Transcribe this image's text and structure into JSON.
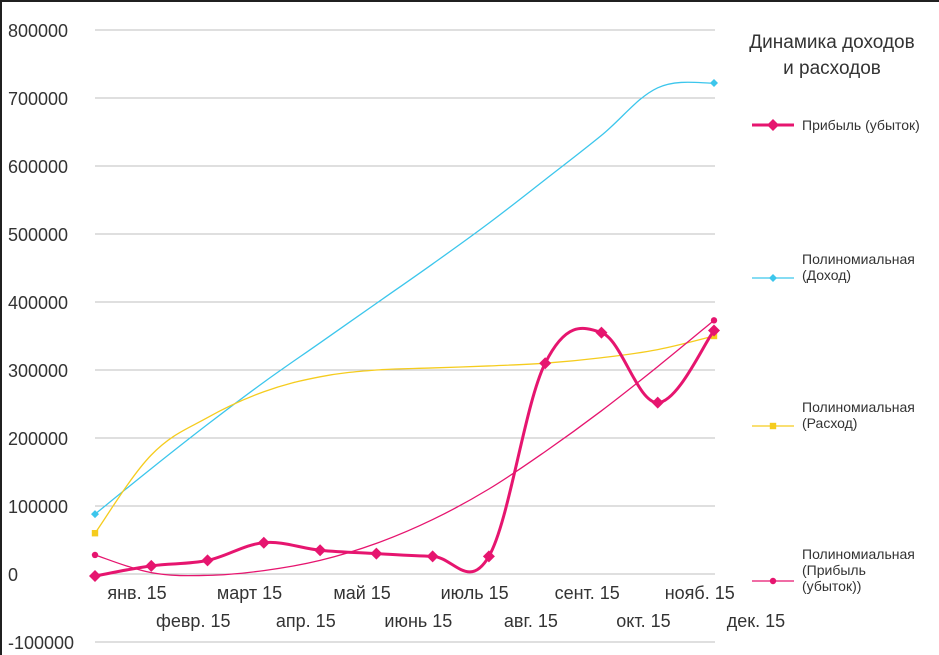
{
  "chart_data": {
    "type": "line",
    "title": [
      "Динамика доходов",
      "и расходов"
    ],
    "categories": [
      "янв. 15",
      "февр. 15",
      "март 15",
      "апр. 15",
      "май 15",
      "июнь 15",
      "июль 15",
      "авг. 15",
      "сент. 15",
      "окт. 15",
      "нояб. 15",
      "дек. 15"
    ],
    "ylim": [
      -100000,
      800000
    ],
    "yticks": [
      "800000",
      "700000",
      "600000",
      "500000",
      "400000",
      "300000",
      "200000",
      "100000",
      "0",
      "-100000"
    ],
    "ytick_values": [
      800000,
      700000,
      600000,
      500000,
      400000,
      300000,
      200000,
      100000,
      0,
      -100000
    ],
    "grid": true,
    "legend_position": "right",
    "series": [
      {
        "name": "Прибыль (убыток)",
        "kind": "data",
        "color": "#e6156f",
        "marker": "diamond",
        "values": [
          -3000,
          12000,
          20000,
          46000,
          35000,
          30000,
          26000,
          26000,
          310000,
          355000,
          252000,
          358000
        ]
      },
      {
        "name": "Полиномиальная (Доход)",
        "kind": "trend",
        "color": "#3cc6ec",
        "marker": "diamond",
        "values": [
          88000,
          155000,
          220000,
          282000,
          340000,
          398000,
          456000,
          516000,
          580000,
          645000,
          715000,
          722000
        ],
        "endpoints_only": true
      },
      {
        "name": "Полиномиальная (Расход)",
        "kind": "trend",
        "color": "#f5cc1e",
        "marker": "square",
        "values": [
          60000,
          175000,
          230000,
          268000,
          290000,
          300000,
          303000,
          306000,
          310000,
          318000,
          330000,
          350000
        ],
        "endpoints_only": true
      },
      {
        "name": "Полиномиальная (Прибыль (убыток))",
        "kind": "trend",
        "color": "#e6156f",
        "marker": "circle",
        "values": [
          28000,
          2000,
          -2000,
          5000,
          20000,
          45000,
          80000,
          125000,
          180000,
          240000,
          305000,
          373000
        ],
        "endpoints_only": true
      }
    ],
    "legend": [
      {
        "label_lines": [
          "Прибыль (убыток)"
        ],
        "color": "#e6156f",
        "marker": "diamond"
      },
      {
        "label_lines": [
          "Полиномиальная",
          "(Доход)"
        ],
        "color": "#3cc6ec",
        "marker": "diamond"
      },
      {
        "label_lines": [
          "Полиномиальная",
          "(Расход)"
        ],
        "color": "#f5cc1e",
        "marker": "square"
      },
      {
        "label_lines": [
          "Полиномиальная",
          "(Прибыль",
          "(убыток))"
        ],
        "color": "#e6156f",
        "marker": "circle"
      }
    ]
  }
}
